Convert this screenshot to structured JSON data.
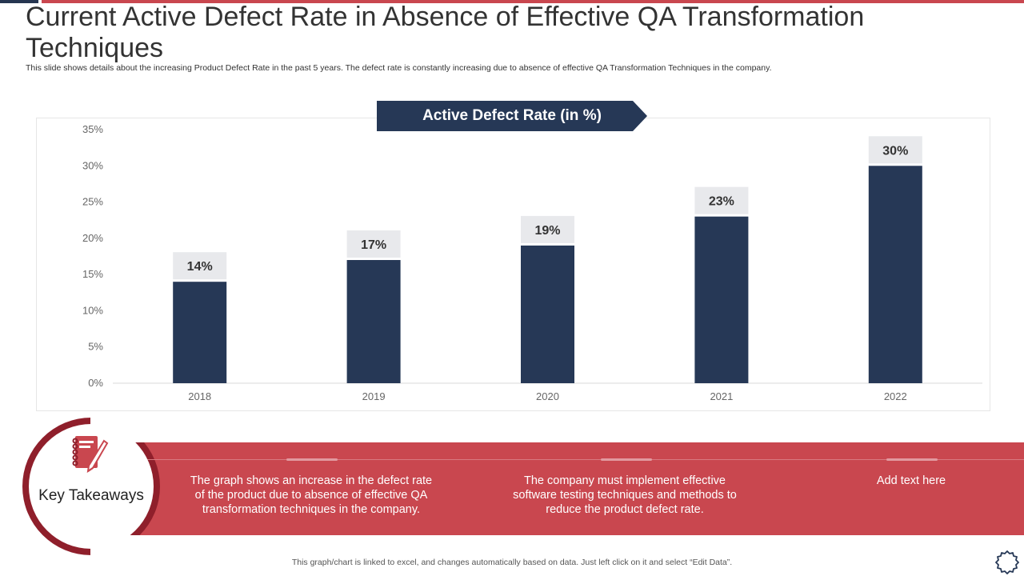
{
  "title": "Current Active Defect Rate in Absence of Effective QA Transformation Techniques",
  "subtitle": "This slide shows details about the increasing Product Defect Rate in the past 5 years. The defect rate is constantly increasing due to absence of effective QA Transformation Techniques in the company.",
  "chart_data": {
    "type": "bar",
    "title": "Active Defect Rate (in %)",
    "categories": [
      "2018",
      "2019",
      "2020",
      "2021",
      "2022"
    ],
    "values": [
      14,
      17,
      19,
      23,
      30
    ],
    "value_labels": [
      "14%",
      "17%",
      "19%",
      "23%",
      "30%"
    ],
    "y_ticks": [
      "0%",
      "5%",
      "10%",
      "15%",
      "20%",
      "25%",
      "30%",
      "35%"
    ],
    "ylim": [
      0,
      35
    ],
    "xlabel": "",
    "ylabel": "",
    "grid": false,
    "colors": {
      "bar": "#263856",
      "label_bg": "#e8e9ec",
      "axis_text": "#666666"
    }
  },
  "key_takeaways": {
    "heading": "Key Takeaways",
    "items": [
      "The graph shows an increase in the defect rate of the product due to absence of effective QA transformation techniques in the company.",
      "The company must implement effective software testing techniques and methods to reduce the product defect rate.",
      "Add text here"
    ],
    "colors": {
      "band": "#c9474f",
      "ring": "#8f1f2b"
    }
  },
  "footer": "This graph/chart is linked to excel, and changes automatically based on data. Just left click on it and select “Edit Data”.",
  "icons": [
    "notebook-pen-icon",
    "gear-icon"
  ]
}
